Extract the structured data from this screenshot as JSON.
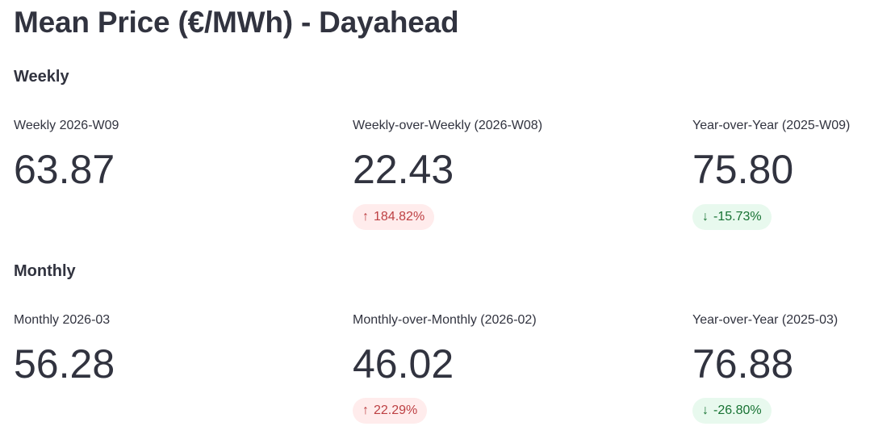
{
  "page": {
    "title": "Mean Price (€/MWh) - Dayahead",
    "text_color": "#31333f",
    "background_color": "#ffffff"
  },
  "colors": {
    "delta_up_text": "#bd4043",
    "delta_up_background": "#fce9e9",
    "delta_down_text": "#177233",
    "delta_down_background": "#e9f8ee"
  },
  "sections": [
    {
      "heading": "Weekly",
      "metrics": [
        {
          "label": "Weekly 2026-W09",
          "value": "63.87"
        },
        {
          "label": "Weekly-over-Weekly (2026-W08)",
          "value": "22.43",
          "delta": {
            "arrow": "↑",
            "text": "184.82%",
            "direction": "up",
            "color": "red"
          }
        },
        {
          "label": "Year-over-Year (2025-W09)",
          "value": "75.80",
          "delta": {
            "arrow": "↓",
            "text": "-15.73%",
            "direction": "down",
            "color": "green"
          }
        }
      ]
    },
    {
      "heading": "Monthly",
      "metrics": [
        {
          "label": "Monthly 2026-03",
          "value": "56.28"
        },
        {
          "label": "Monthly-over-Monthly (2026-02)",
          "value": "46.02",
          "delta": {
            "arrow": "↑",
            "text": "22.29%",
            "direction": "up",
            "color": "red"
          }
        },
        {
          "label": "Year-over-Year (2025-03)",
          "value": "76.88",
          "delta": {
            "arrow": "↓",
            "text": "-26.80%",
            "direction": "down",
            "color": "green"
          }
        }
      ]
    }
  ]
}
